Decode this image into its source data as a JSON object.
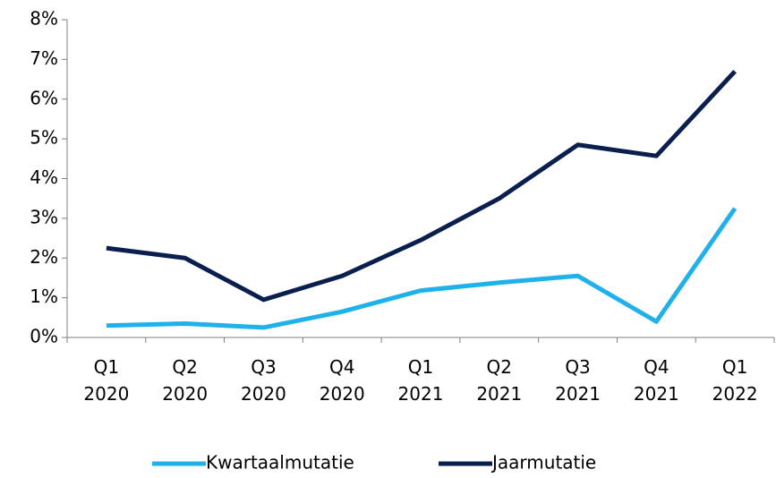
{
  "chart_data": {
    "type": "line",
    "categories": [
      "Q1 2020",
      "Q2 2020",
      "Q3 2020",
      "Q4 2020",
      "Q1 2021",
      "Q2 2021",
      "Q3 2021",
      "Q4 2021",
      "Q1 2022"
    ],
    "series": [
      {
        "name": "Kwartaalmutatie",
        "color": "#1fb1ea",
        "values": [
          0.3,
          0.35,
          0.25,
          0.65,
          1.18,
          1.38,
          1.55,
          0.4,
          3.25
        ]
      },
      {
        "name": "Jaarmutatie",
        "color": "#0b1f4f",
        "values": [
          2.25,
          2.0,
          0.95,
          1.55,
          2.45,
          3.5,
          4.85,
          4.57,
          6.7
        ]
      }
    ],
    "ylim": [
      0,
      8
    ],
    "yticks": [
      {
        "value": 0,
        "label": "0%"
      },
      {
        "value": 1,
        "label": "1%"
      },
      {
        "value": 2,
        "label": "2%"
      },
      {
        "value": 3,
        "label": "3%"
      },
      {
        "value": 4,
        "label": "4%"
      },
      {
        "value": 5,
        "label": "5%"
      },
      {
        "value": 6,
        "label": "6%"
      },
      {
        "value": 7,
        "label": "7%"
      },
      {
        "value": 8,
        "label": "8%"
      }
    ],
    "grid": false,
    "legend": "bottom"
  }
}
